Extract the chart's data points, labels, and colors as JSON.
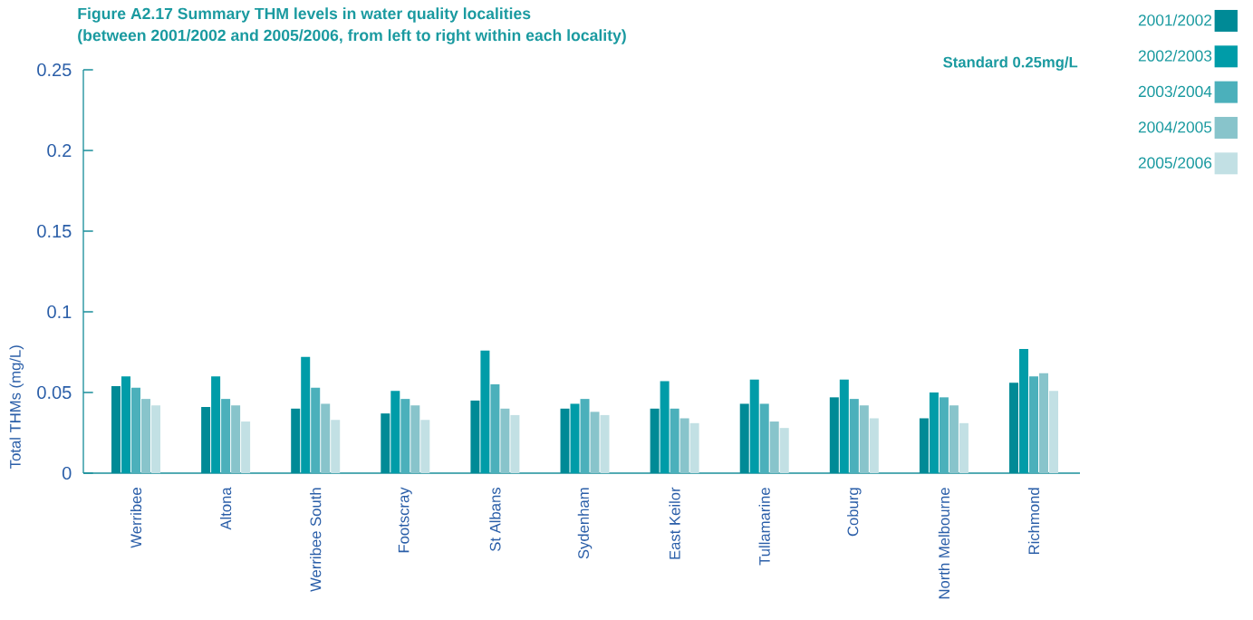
{
  "chart_data": {
    "type": "bar",
    "title": "Figure A2.17 Summary THM levels in water quality localities",
    "subtitle": "(between 2001/2002 and 2005/2006, from left to right within each locality)",
    "ylabel": "Total THMs (mg/L)",
    "annotations": [
      "Standard 0.25mg/L"
    ],
    "categories": [
      "Werribee",
      "Altona",
      "Werribee South",
      "Footscray",
      "St Albans",
      "Sydenham",
      "East Keilor",
      "Tullamarine",
      "Coburg",
      "North Melbourne",
      "Richmond"
    ],
    "series": [
      {
        "name": "2001/2002",
        "color": "#008a96",
        "values": [
          0.054,
          0.041,
          0.04,
          0.037,
          0.045,
          0.04,
          0.04,
          0.043,
          0.047,
          0.034,
          0.056
        ]
      },
      {
        "name": "2002/2003",
        "color": "#009ca8",
        "values": [
          0.06,
          0.06,
          0.072,
          0.051,
          0.076,
          0.043,
          0.057,
          0.058,
          0.058,
          0.05,
          0.077
        ]
      },
      {
        "name": "2003/2004",
        "color": "#4bb0bb",
        "values": [
          0.053,
          0.046,
          0.053,
          0.046,
          0.055,
          0.046,
          0.04,
          0.043,
          0.046,
          0.047,
          0.06
        ]
      },
      {
        "name": "2004/2005",
        "color": "#88c4cb",
        "values": [
          0.046,
          0.042,
          0.043,
          0.042,
          0.04,
          0.038,
          0.034,
          0.032,
          0.042,
          0.042,
          0.062
        ]
      },
      {
        "name": "2005/2006",
        "color": "#c2e0e4",
        "values": [
          0.042,
          0.032,
          0.033,
          0.033,
          0.036,
          0.036,
          0.031,
          0.028,
          0.034,
          0.031,
          0.051
        ]
      }
    ],
    "ylim": [
      0,
      0.25
    ],
    "yticks": [
      0,
      0.05,
      0.1,
      0.15,
      0.2,
      0.25
    ],
    "legend": "top right"
  }
}
